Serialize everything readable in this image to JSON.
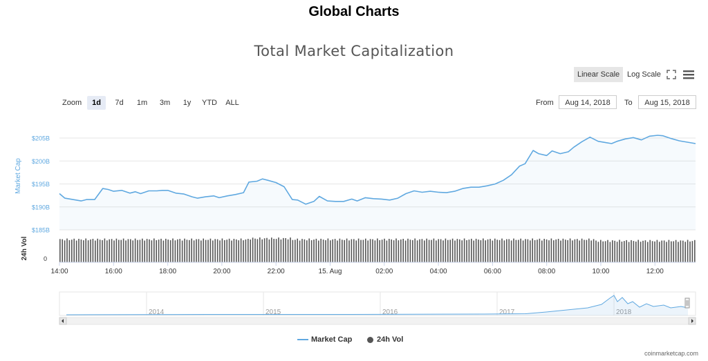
{
  "page_title": "Global Charts",
  "chart_title": "Total Market Capitalization",
  "toolbar": {
    "linear_scale": "Linear Scale",
    "log_scale": "Log Scale",
    "fullscreen_icon": "expand-icon",
    "menu_icon": "hamburger-menu-icon"
  },
  "zoom": {
    "label": "Zoom",
    "buttons": [
      "1d",
      "7d",
      "1m",
      "3m",
      "1y",
      "YTD",
      "ALL"
    ],
    "active": "1d"
  },
  "range": {
    "from_label": "From",
    "from_value": "Aug 14, 2018",
    "to_label": "To",
    "to_value": "Aug 15, 2018"
  },
  "legend": {
    "market_cap": "Market Cap",
    "vol": "24h Vol"
  },
  "credit": "coinmarketcap.com",
  "colors": {
    "market_cap": "#5fa8e0",
    "volume": "#555555",
    "axis_label": "#5fa8e0",
    "active_zoom": "#e6ebf5"
  },
  "chart_data": {
    "type": "line",
    "title": "Total Market Capitalization",
    "ylabel": "Market Cap",
    "ylabel_vol": "24h Vol",
    "y_ticks": [
      "$185B",
      "$190B",
      "$195B",
      "$200B",
      "$205B"
    ],
    "y_tick_values": [
      185,
      190,
      195,
      200,
      205
    ],
    "ylim": [
      185,
      205
    ],
    "vol_ticks": [
      "0"
    ],
    "x_ticks": [
      "14:00",
      "16:00",
      "18:00",
      "20:00",
      "22:00",
      "15. Aug",
      "02:00",
      "04:00",
      "06:00",
      "08:00",
      "10:00",
      "12:00"
    ],
    "x_tick_hours": [
      14,
      16,
      18,
      20,
      22,
      24,
      26,
      28,
      30,
      32,
      34,
      36
    ],
    "xlim_hours": [
      14,
      37.5
    ],
    "series": [
      {
        "name": "Market Cap",
        "unit": "billion USD",
        "x_hours": [
          14.0,
          14.2,
          14.5,
          14.8,
          15.0,
          15.3,
          15.6,
          15.8,
          16.0,
          16.3,
          16.6,
          16.8,
          17.0,
          17.3,
          17.6,
          17.8,
          18.0,
          18.3,
          18.6,
          18.9,
          19.1,
          19.4,
          19.7,
          19.9,
          20.2,
          20.5,
          20.8,
          21.0,
          21.3,
          21.5,
          21.7,
          22.0,
          22.3,
          22.6,
          22.8,
          23.1,
          23.4,
          23.6,
          23.9,
          24.2,
          24.5,
          24.8,
          25.0,
          25.3,
          25.6,
          25.9,
          26.2,
          26.5,
          26.8,
          27.1,
          27.4,
          27.7,
          28.0,
          28.3,
          28.6,
          28.9,
          29.2,
          29.5,
          29.8,
          30.1,
          30.4,
          30.7,
          31.0,
          31.2,
          31.5,
          31.7,
          32.0,
          32.2,
          32.5,
          32.8,
          33.0,
          33.3,
          33.6,
          33.9,
          34.2,
          34.4,
          34.6,
          34.9,
          35.2,
          35.5,
          35.8,
          36.1,
          36.3,
          36.6,
          36.9,
          37.2,
          37.5
        ],
        "values": [
          192.9,
          191.9,
          191.6,
          191.3,
          191.6,
          191.6,
          194.0,
          193.8,
          193.4,
          193.6,
          193.0,
          193.3,
          192.9,
          193.5,
          193.5,
          193.6,
          193.6,
          193.0,
          192.8,
          192.2,
          191.9,
          192.2,
          192.4,
          192.0,
          192.4,
          192.7,
          193.1,
          195.4,
          195.6,
          196.1,
          195.8,
          195.3,
          194.4,
          191.6,
          191.5,
          190.6,
          191.2,
          192.3,
          191.3,
          191.2,
          191.2,
          191.7,
          191.3,
          192.0,
          191.8,
          191.7,
          191.5,
          191.9,
          192.9,
          193.5,
          193.2,
          193.4,
          193.2,
          193.1,
          193.4,
          194.0,
          194.3,
          194.3,
          194.6,
          195.0,
          195.8,
          197.0,
          198.9,
          199.4,
          202.3,
          201.6,
          201.2,
          202.2,
          201.6,
          202.0,
          203.0,
          204.2,
          205.2,
          204.3,
          204.0,
          203.8,
          204.3,
          204.8,
          205.1,
          204.6,
          205.4,
          205.6,
          205.5,
          204.9,
          204.4,
          204.1,
          203.8
        ]
      },
      {
        "name": "24h Vol",
        "unit": "relative",
        "note_level": 0.85
      }
    ],
    "navigator": {
      "x_labels": [
        "2014",
        "2015",
        "2016",
        "2017",
        "2018"
      ]
    },
    "legend_position": "bottom-center",
    "grid": true
  }
}
